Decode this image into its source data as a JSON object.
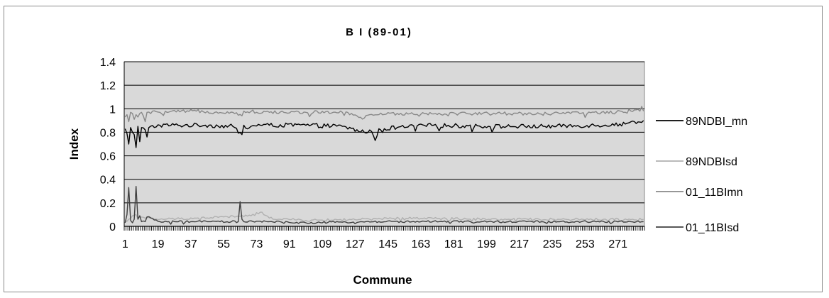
{
  "chart_data": {
    "type": "line",
    "title": "B I (89-01)",
    "xlabel": "Commune",
    "ylabel": "Index",
    "x_range": [
      1,
      285
    ],
    "x_tick_labels": [
      "1",
      "19",
      "37",
      "55",
      "73",
      "91",
      "109",
      "127",
      "145",
      "163",
      "181",
      "199",
      "217",
      "235",
      "253",
      "271"
    ],
    "x_tick_values": [
      1,
      19,
      37,
      55,
      73,
      91,
      109,
      127,
      145,
      163,
      181,
      199,
      217,
      235,
      253,
      271
    ],
    "ylim": [
      0,
      1.4
    ],
    "y_ticks": [
      "0",
      "0.2",
      "0.4",
      "0.6",
      "0.8",
      "1",
      "1.2",
      "1.4"
    ],
    "y_tick_values": [
      0,
      0.2,
      0.4,
      0.6,
      0.8,
      1.0,
      1.2,
      1.4
    ],
    "grid": true,
    "legend_position": "right",
    "plot_background": "#d9d9d9",
    "series": [
      {
        "name": "89NDBI_mn",
        "color": "#000000",
        "baseline": 0.85,
        "noise": 0.018,
        "points": [
          [
            1,
            0.83
          ],
          [
            2,
            0.79
          ],
          [
            3,
            0.7
          ],
          [
            4,
            0.84
          ],
          [
            5,
            0.8
          ],
          [
            6,
            0.78
          ],
          [
            7,
            0.67
          ],
          [
            8,
            0.85
          ],
          [
            9,
            0.72
          ],
          [
            10,
            0.84
          ],
          [
            12,
            0.82
          ],
          [
            13,
            0.76
          ],
          [
            14,
            0.84
          ],
          [
            20,
            0.86
          ],
          [
            30,
            0.86
          ],
          [
            45,
            0.86
          ],
          [
            60,
            0.85
          ],
          [
            65,
            0.78
          ],
          [
            66,
            0.86
          ],
          [
            80,
            0.86
          ],
          [
            100,
            0.86
          ],
          [
            120,
            0.85
          ],
          [
            132,
            0.8
          ],
          [
            135,
            0.82
          ],
          [
            138,
            0.73
          ],
          [
            140,
            0.83
          ],
          [
            150,
            0.84
          ],
          [
            170,
            0.86
          ],
          [
            200,
            0.85
          ],
          [
            230,
            0.85
          ],
          [
            260,
            0.86
          ],
          [
            275,
            0.87
          ],
          [
            280,
            0.89
          ],
          [
            285,
            0.9
          ]
        ]
      },
      {
        "name": "89NDBIsd",
        "color": "#b0b0b0",
        "baseline": 0.05,
        "noise": 0.01,
        "points": [
          [
            1,
            0.05
          ],
          [
            3,
            0.06
          ],
          [
            5,
            0.09
          ],
          [
            7,
            0.1
          ],
          [
            9,
            0.08
          ],
          [
            12,
            0.07
          ],
          [
            20,
            0.06
          ],
          [
            40,
            0.07
          ],
          [
            55,
            0.08
          ],
          [
            70,
            0.09
          ],
          [
            75,
            0.12
          ],
          [
            80,
            0.07
          ],
          [
            100,
            0.05
          ],
          [
            160,
            0.07
          ],
          [
            200,
            0.06
          ],
          [
            240,
            0.06
          ],
          [
            285,
            0.06
          ]
        ]
      },
      {
        "name": "01_11BImn",
        "color": "#888888",
        "baseline": 0.965,
        "noise": 0.014,
        "points": [
          [
            1,
            0.93
          ],
          [
            2,
            0.95
          ],
          [
            3,
            0.89
          ],
          [
            4,
            0.97
          ],
          [
            5,
            0.96
          ],
          [
            6,
            0.91
          ],
          [
            7,
            0.95
          ],
          [
            8,
            0.93
          ],
          [
            9,
            0.96
          ],
          [
            10,
            0.97
          ],
          [
            12,
            0.89
          ],
          [
            13,
            0.97
          ],
          [
            20,
            0.97
          ],
          [
            40,
            0.98
          ],
          [
            60,
            0.97
          ],
          [
            65,
            0.94
          ],
          [
            66,
            0.98
          ],
          [
            80,
            0.97
          ],
          [
            100,
            0.97
          ],
          [
            120,
            0.97
          ],
          [
            132,
            0.92
          ],
          [
            135,
            0.95
          ],
          [
            140,
            0.95
          ],
          [
            150,
            0.96
          ],
          [
            200,
            0.96
          ],
          [
            240,
            0.96
          ],
          [
            270,
            0.97
          ],
          [
            280,
            0.99
          ],
          [
            284,
            1.02
          ],
          [
            285,
            0.98
          ]
        ]
      },
      {
        "name": "01_11BIsd",
        "color": "#404040",
        "baseline": 0.035,
        "noise": 0.008,
        "points": [
          [
            1,
            0.03
          ],
          [
            2,
            0.1
          ],
          [
            3,
            0.33
          ],
          [
            4,
            0.05
          ],
          [
            5,
            0.03
          ],
          [
            6,
            0.06
          ],
          [
            7,
            0.34
          ],
          [
            8,
            0.06
          ],
          [
            9,
            0.09
          ],
          [
            10,
            0.04
          ],
          [
            12,
            0.04
          ],
          [
            13,
            0.08
          ],
          [
            20,
            0.04
          ],
          [
            40,
            0.04
          ],
          [
            63,
            0.04
          ],
          [
            64,
            0.21
          ],
          [
            65,
            0.06
          ],
          [
            66,
            0.04
          ],
          [
            80,
            0.04
          ],
          [
            100,
            0.03
          ],
          [
            140,
            0.04
          ],
          [
            200,
            0.04
          ],
          [
            285,
            0.04
          ]
        ]
      }
    ]
  }
}
